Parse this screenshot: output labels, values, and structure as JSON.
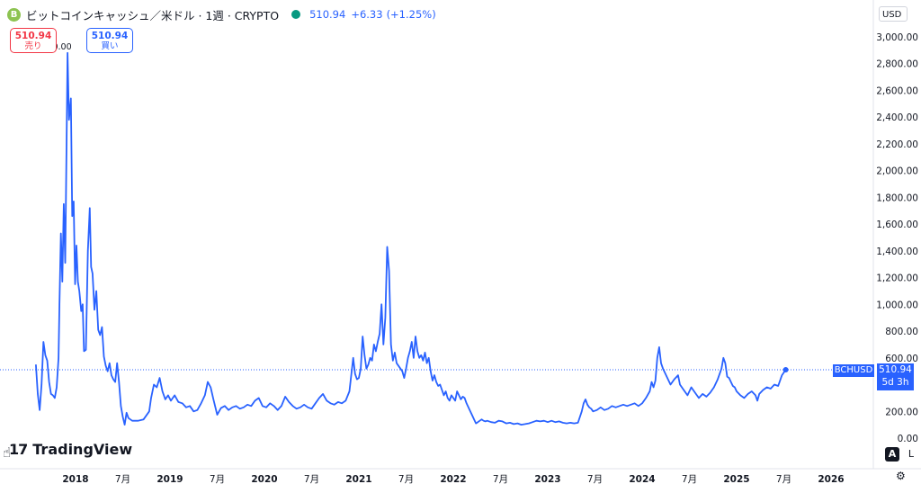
{
  "header": {
    "coin_icon": "B",
    "title": "ビットコインキャッシュ／米ドル · 1週 · CRYPTO",
    "price": "510.94",
    "change": "+6.33",
    "change_pct": "(+1.25%)",
    "status_color": "#089981"
  },
  "sell": {
    "value": "510.94",
    "label": "売り"
  },
  "buy": {
    "value": "510.94",
    "label": "買い"
  },
  "currency": "USD",
  "brand": {
    "mark": "17",
    "name": "TradingView"
  },
  "controls": {
    "auto": "A",
    "log": "L",
    "settings_icon": "gear-icon"
  },
  "tags": {
    "symbol": "BCHUSD",
    "last": "510.94",
    "countdown": "5d 3h"
  },
  "colors": {
    "line": "#2962ff",
    "accent": "#2962ff",
    "sell": "#f23645",
    "text": "#131722"
  },
  "chart_data": {
    "type": "line",
    "title": "ビットコインキャッシュ／米ドル · 1週 · CRYPTO",
    "xlabel": "",
    "ylabel": "",
    "ylim": [
      0,
      3100
    ],
    "y_ticks": [
      "3,000.00",
      "2,800.00",
      "2,600.00",
      "2,400.00",
      "2,200.00",
      "2,000.00",
      "1,800.00",
      "1,600.00",
      "1,400.00",
      "1,200.00",
      "1,000.00",
      "800.00",
      "600.00",
      "200.00",
      "0.00"
    ],
    "y_tick_values": [
      3000,
      2800,
      2600,
      2400,
      2200,
      2000,
      1800,
      1600,
      1400,
      1200,
      1000,
      800,
      600,
      200,
      0
    ],
    "x_ticks": [
      {
        "label": "2018",
        "year": 2018.0
      },
      {
        "label": "7月",
        "year": 2018.5
      },
      {
        "label": "2019",
        "year": 2019.0
      },
      {
        "label": "7月",
        "year": 2019.5
      },
      {
        "label": "2020",
        "year": 2020.0
      },
      {
        "label": "7月",
        "year": 2020.5
      },
      {
        "label": "2021",
        "year": 2021.0
      },
      {
        "label": "7月",
        "year": 2021.5
      },
      {
        "label": "2022",
        "year": 2022.0
      },
      {
        "label": "7月",
        "year": 2022.5
      },
      {
        "label": "2023",
        "year": 2023.0
      },
      {
        "label": "7月",
        "year": 2023.5
      },
      {
        "label": "2024",
        "year": 2024.0
      },
      {
        "label": "7月",
        "year": 2024.5
      },
      {
        "label": "2025",
        "year": 2025.0
      },
      {
        "label": "7月",
        "year": 2025.5
      },
      {
        "label": "2026",
        "year": 2026.0
      }
    ],
    "xlim": [
      2017.53,
      2026.35
    ],
    "high_label": "0.00",
    "last_value": 510.94,
    "series": [
      {
        "values": [
          [
            2017.58,
            550
          ],
          [
            2017.6,
            330
          ],
          [
            2017.62,
            210
          ],
          [
            2017.64,
            400
          ],
          [
            2017.66,
            720
          ],
          [
            2017.68,
            620
          ],
          [
            2017.7,
            580
          ],
          [
            2017.72,
            420
          ],
          [
            2017.74,
            330
          ],
          [
            2017.76,
            320
          ],
          [
            2017.78,
            300
          ],
          [
            2017.8,
            380
          ],
          [
            2017.82,
            600
          ],
          [
            2017.83,
            1000
          ],
          [
            2017.845,
            1530
          ],
          [
            2017.86,
            1170
          ],
          [
            2017.875,
            1750
          ],
          [
            2017.89,
            1310
          ],
          [
            2017.905,
            2200
          ],
          [
            2017.915,
            2880
          ],
          [
            2017.93,
            2380
          ],
          [
            2017.95,
            2540
          ],
          [
            2017.965,
            1660
          ],
          [
            2017.98,
            1770
          ],
          [
            2017.995,
            1150
          ],
          [
            2018.01,
            1440
          ],
          [
            2018.025,
            1170
          ],
          [
            2018.04,
            1100
          ],
          [
            2018.06,
            950
          ],
          [
            2018.075,
            1000
          ],
          [
            2018.09,
            650
          ],
          [
            2018.11,
            660
          ],
          [
            2018.13,
            1400
          ],
          [
            2018.15,
            1720
          ],
          [
            2018.165,
            1280
          ],
          [
            2018.18,
            1230
          ],
          [
            2018.2,
            960
          ],
          [
            2018.22,
            1100
          ],
          [
            2018.24,
            810
          ],
          [
            2018.26,
            770
          ],
          [
            2018.28,
            830
          ],
          [
            2018.3,
            610
          ],
          [
            2018.32,
            540
          ],
          [
            2018.34,
            500
          ],
          [
            2018.36,
            560
          ],
          [
            2018.38,
            470
          ],
          [
            2018.4,
            440
          ],
          [
            2018.42,
            420
          ],
          [
            2018.44,
            560
          ],
          [
            2018.46,
            420
          ],
          [
            2018.48,
            240
          ],
          [
            2018.5,
            160
          ],
          [
            2018.52,
            100
          ],
          [
            2018.54,
            190
          ],
          [
            2018.56,
            150
          ],
          [
            2018.6,
            130
          ],
          [
            2018.66,
            130
          ],
          [
            2018.72,
            140
          ],
          [
            2018.78,
            200
          ],
          [
            2018.8,
            300
          ],
          [
            2018.83,
            400
          ],
          [
            2018.86,
            380
          ],
          [
            2018.89,
            450
          ],
          [
            2018.92,
            350
          ],
          [
            2018.95,
            290
          ],
          [
            2018.98,
            320
          ],
          [
            2019.01,
            280
          ],
          [
            2019.05,
            320
          ],
          [
            2019.09,
            270
          ],
          [
            2019.13,
            260
          ],
          [
            2019.17,
            230
          ],
          [
            2019.21,
            240
          ],
          [
            2019.25,
            200
          ],
          [
            2019.29,
            210
          ],
          [
            2019.33,
            260
          ],
          [
            2019.37,
            320
          ],
          [
            2019.4,
            420
          ],
          [
            2019.43,
            380
          ],
          [
            2019.46,
            290
          ],
          [
            2019.5,
            175
          ],
          [
            2019.54,
            225
          ],
          [
            2019.58,
            240
          ],
          [
            2019.62,
            210
          ],
          [
            2019.66,
            230
          ],
          [
            2019.7,
            240
          ],
          [
            2019.74,
            220
          ],
          [
            2019.78,
            230
          ],
          [
            2019.82,
            250
          ],
          [
            2019.86,
            240
          ],
          [
            2019.9,
            280
          ],
          [
            2019.94,
            300
          ],
          [
            2019.98,
            240
          ],
          [
            2020.02,
            230
          ],
          [
            2020.06,
            260
          ],
          [
            2020.1,
            240
          ],
          [
            2020.14,
            210
          ],
          [
            2020.18,
            240
          ],
          [
            2020.22,
            310
          ],
          [
            2020.26,
            270
          ],
          [
            2020.3,
            240
          ],
          [
            2020.34,
            220
          ],
          [
            2020.38,
            230
          ],
          [
            2020.42,
            250
          ],
          [
            2020.46,
            230
          ],
          [
            2020.5,
            220
          ],
          [
            2020.54,
            260
          ],
          [
            2020.58,
            300
          ],
          [
            2020.62,
            330
          ],
          [
            2020.66,
            280
          ],
          [
            2020.7,
            260
          ],
          [
            2020.74,
            250
          ],
          [
            2020.78,
            270
          ],
          [
            2020.82,
            260
          ],
          [
            2020.86,
            280
          ],
          [
            2020.9,
            350
          ],
          [
            2020.94,
            600
          ],
          [
            2020.96,
            480
          ],
          [
            2020.98,
            440
          ],
          [
            2021.0,
            450
          ],
          [
            2021.02,
            520
          ],
          [
            2021.04,
            760
          ],
          [
            2021.06,
            620
          ],
          [
            2021.08,
            520
          ],
          [
            2021.1,
            550
          ],
          [
            2021.12,
            600
          ],
          [
            2021.14,
            580
          ],
          [
            2021.16,
            700
          ],
          [
            2021.18,
            650
          ],
          [
            2021.2,
            720
          ],
          [
            2021.22,
            780
          ],
          [
            2021.24,
            1000
          ],
          [
            2021.26,
            700
          ],
          [
            2021.28,
            900
          ],
          [
            2021.3,
            1430
          ],
          [
            2021.32,
            1250
          ],
          [
            2021.34,
            700
          ],
          [
            2021.36,
            580
          ],
          [
            2021.38,
            640
          ],
          [
            2021.4,
            560
          ],
          [
            2021.42,
            540
          ],
          [
            2021.44,
            520
          ],
          [
            2021.46,
            500
          ],
          [
            2021.48,
            450
          ],
          [
            2021.5,
            520
          ],
          [
            2021.52,
            600
          ],
          [
            2021.54,
            650
          ],
          [
            2021.56,
            720
          ],
          [
            2021.58,
            600
          ],
          [
            2021.6,
            760
          ],
          [
            2021.62,
            650
          ],
          [
            2021.64,
            600
          ],
          [
            2021.66,
            620
          ],
          [
            2021.68,
            580
          ],
          [
            2021.7,
            640
          ],
          [
            2021.72,
            560
          ],
          [
            2021.74,
            600
          ],
          [
            2021.76,
            500
          ],
          [
            2021.78,
            430
          ],
          [
            2021.8,
            470
          ],
          [
            2021.82,
            420
          ],
          [
            2021.84,
            390
          ],
          [
            2021.86,
            400
          ],
          [
            2021.88,
            360
          ],
          [
            2021.9,
            320
          ],
          [
            2021.92,
            350
          ],
          [
            2021.94,
            300
          ],
          [
            2021.96,
            280
          ],
          [
            2021.98,
            320
          ],
          [
            2022.0,
            300
          ],
          [
            2022.02,
            280
          ],
          [
            2022.04,
            350
          ],
          [
            2022.06,
            320
          ],
          [
            2022.08,
            290
          ],
          [
            2022.1,
            310
          ],
          [
            2022.12,
            300
          ],
          [
            2022.14,
            260
          ],
          [
            2022.16,
            230
          ],
          [
            2022.18,
            200
          ],
          [
            2022.2,
            170
          ],
          [
            2022.22,
            140
          ],
          [
            2022.24,
            110
          ],
          [
            2022.26,
            120
          ],
          [
            2022.28,
            130
          ],
          [
            2022.3,
            140
          ],
          [
            2022.32,
            130
          ],
          [
            2022.34,
            125
          ],
          [
            2022.36,
            130
          ],
          [
            2022.4,
            120
          ],
          [
            2022.44,
            115
          ],
          [
            2022.48,
            130
          ],
          [
            2022.52,
            125
          ],
          [
            2022.56,
            110
          ],
          [
            2022.6,
            115
          ],
          [
            2022.64,
            105
          ],
          [
            2022.68,
            110
          ],
          [
            2022.72,
            100
          ],
          [
            2022.76,
            105
          ],
          [
            2022.8,
            110
          ],
          [
            2022.84,
            120
          ],
          [
            2022.88,
            130
          ],
          [
            2022.92,
            125
          ],
          [
            2022.96,
            130
          ],
          [
            2023.0,
            120
          ],
          [
            2023.04,
            130
          ],
          [
            2023.08,
            120
          ],
          [
            2023.12,
            125
          ],
          [
            2023.16,
            115
          ],
          [
            2023.2,
            110
          ],
          [
            2023.24,
            115
          ],
          [
            2023.28,
            110
          ],
          [
            2023.32,
            115
          ],
          [
            2023.36,
            200
          ],
          [
            2023.38,
            260
          ],
          [
            2023.4,
            290
          ],
          [
            2023.42,
            250
          ],
          [
            2023.44,
            230
          ],
          [
            2023.46,
            220
          ],
          [
            2023.48,
            200
          ],
          [
            2023.52,
            210
          ],
          [
            2023.56,
            230
          ],
          [
            2023.6,
            210
          ],
          [
            2023.64,
            220
          ],
          [
            2023.68,
            240
          ],
          [
            2023.72,
            230
          ],
          [
            2023.76,
            240
          ],
          [
            2023.8,
            250
          ],
          [
            2023.84,
            240
          ],
          [
            2023.88,
            250
          ],
          [
            2023.92,
            260
          ],
          [
            2023.96,
            240
          ],
          [
            2024.0,
            260
          ],
          [
            2024.04,
            300
          ],
          [
            2024.08,
            350
          ],
          [
            2024.1,
            420
          ],
          [
            2024.12,
            380
          ],
          [
            2024.14,
            430
          ],
          [
            2024.16,
            600
          ],
          [
            2024.18,
            680
          ],
          [
            2024.2,
            560
          ],
          [
            2024.22,
            520
          ],
          [
            2024.26,
            460
          ],
          [
            2024.3,
            400
          ],
          [
            2024.34,
            440
          ],
          [
            2024.38,
            470
          ],
          [
            2024.4,
            400
          ],
          [
            2024.44,
            360
          ],
          [
            2024.48,
            320
          ],
          [
            2024.52,
            380
          ],
          [
            2024.56,
            340
          ],
          [
            2024.6,
            300
          ],
          [
            2024.64,
            330
          ],
          [
            2024.68,
            310
          ],
          [
            2024.72,
            340
          ],
          [
            2024.76,
            380
          ],
          [
            2024.8,
            440
          ],
          [
            2024.84,
            520
          ],
          [
            2024.86,
            600
          ],
          [
            2024.88,
            560
          ],
          [
            2024.9,
            460
          ],
          [
            2024.92,
            450
          ],
          [
            2024.94,
            420
          ],
          [
            2024.96,
            390
          ],
          [
            2024.98,
            380
          ],
          [
            2025.0,
            350
          ],
          [
            2025.04,
            320
          ],
          [
            2025.08,
            300
          ],
          [
            2025.12,
            330
          ],
          [
            2025.16,
            350
          ],
          [
            2025.2,
            320
          ],
          [
            2025.22,
            280
          ],
          [
            2025.24,
            330
          ],
          [
            2025.28,
            360
          ],
          [
            2025.32,
            380
          ],
          [
            2025.36,
            370
          ],
          [
            2025.4,
            400
          ],
          [
            2025.44,
            390
          ],
          [
            2025.48,
            470
          ],
          [
            2025.52,
            510.94
          ]
        ]
      }
    ]
  }
}
